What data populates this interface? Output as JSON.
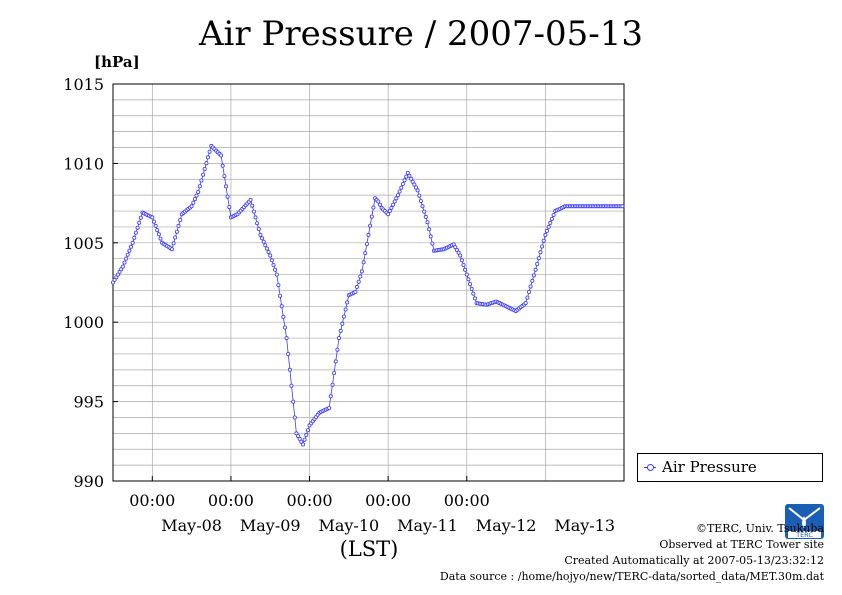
{
  "title": "Air Pressure / 2007-05-13",
  "colors": {
    "series": "#3a3aff",
    "grid": "#a8a8a8",
    "axis": "#000000",
    "logo": "#1a5fb4"
  },
  "chart_data": {
    "type": "line",
    "title": "Air Pressure / 2007-05-13",
    "ylabel": "[hPa]",
    "xlabel": "(LST)",
    "ylim": [
      990,
      1015
    ],
    "yticks": [
      "990",
      "995",
      "1000",
      "1005",
      "1010",
      "1015"
    ],
    "x_time_ticks": [
      "00:00",
      "00:00",
      "00:00",
      "00:00",
      "00:00"
    ],
    "x_date_labels": [
      "May-08",
      "May-09",
      "May-10",
      "May-11",
      "May-12",
      "May-13"
    ],
    "xlim": [
      "2007-05-07 12:00",
      "2007-05-14 00:00"
    ],
    "grid": true,
    "legend_position": "lower-right-outside",
    "series": [
      {
        "name": "Air Pressure",
        "x": [
          "2007-05-07 12:00",
          "2007-05-07 15:00",
          "2007-05-07 18:00",
          "2007-05-07 21:00",
          "2007-05-08 00:00",
          "2007-05-08 03:00",
          "2007-05-08 06:00",
          "2007-05-08 09:00",
          "2007-05-08 12:00",
          "2007-05-08 14:00",
          "2007-05-08 18:00",
          "2007-05-08 21:00",
          "2007-05-09 00:00",
          "2007-05-09 02:00",
          "2007-05-09 06:00",
          "2007-05-09 09:00",
          "2007-05-09 12:00",
          "2007-05-09 14:00",
          "2007-05-09 17:00",
          "2007-05-09 20:00",
          "2007-05-09 22:00",
          "2007-05-10 00:00",
          "2007-05-10 03:00",
          "2007-05-10 06:00",
          "2007-05-10 09:00",
          "2007-05-10 12:00",
          "2007-05-10 14:00",
          "2007-05-10 16:00",
          "2007-05-10 18:00",
          "2007-05-10 20:00",
          "2007-05-10 21:00",
          "2007-05-10 22:00",
          "2007-05-11 00:00",
          "2007-05-11 03:00",
          "2007-05-11 06:00",
          "2007-05-11 09:00",
          "2007-05-11 12:00",
          "2007-05-11 14:00",
          "2007-05-11 17:00",
          "2007-05-11 20:00",
          "2007-05-11 22:00",
          "2007-05-12 00:00",
          "2007-05-12 03:00",
          "2007-05-12 06:00",
          "2007-05-12 09:00",
          "2007-05-12 12:00",
          "2007-05-12 15:00",
          "2007-05-12 18:00",
          "2007-05-12 21:00",
          "2007-05-13 00:00",
          "2007-05-13 03:00",
          "2007-05-13 06:00",
          "2007-05-13 09:00",
          "2007-05-13 12:00",
          "2007-05-13 15:00",
          "2007-05-13 18:00",
          "2007-05-13 21:00",
          "2007-05-13 23:30"
        ],
        "y": [
          1002.5,
          1003.5,
          1005.0,
          1006.9,
          1006.6,
          1005.0,
          1004.6,
          1006.8,
          1007.3,
          1008.2,
          1011.1,
          1010.5,
          1006.6,
          1006.8,
          1007.7,
          1005.5,
          1004.2,
          1003.0,
          999.0,
          993.0,
          992.3,
          993.5,
          994.3,
          994.6,
          999.0,
          1001.7,
          1001.9,
          1003.2,
          1005.5,
          1007.8,
          1007.6,
          1007.2,
          1006.8,
          1008.0,
          1009.4,
          1008.3,
          1006.3,
          1004.5,
          1004.6,
          1004.9,
          1004.2,
          1003.0,
          1001.2,
          1001.1,
          1001.3,
          1001.0,
          1000.7,
          1001.2,
          1003.3,
          1005.5,
          1007.0,
          1007.3,
          1007.3,
          1007.3,
          1007.3,
          1007.3,
          1007.3,
          1007.3
        ]
      }
    ]
  },
  "legend": {
    "label": "Air Pressure"
  },
  "credits": {
    "copyright": "©TERC, Univ. Tsukuba",
    "observed": "Observed at TERC Tower site",
    "created": "Created Automatically at 2007-05-13/23:32:12",
    "source": "Data source : /home/hojyo/new/TERC-data/sorted_data/MET.30m.dat"
  },
  "logo": {
    "text": "TERC"
  }
}
